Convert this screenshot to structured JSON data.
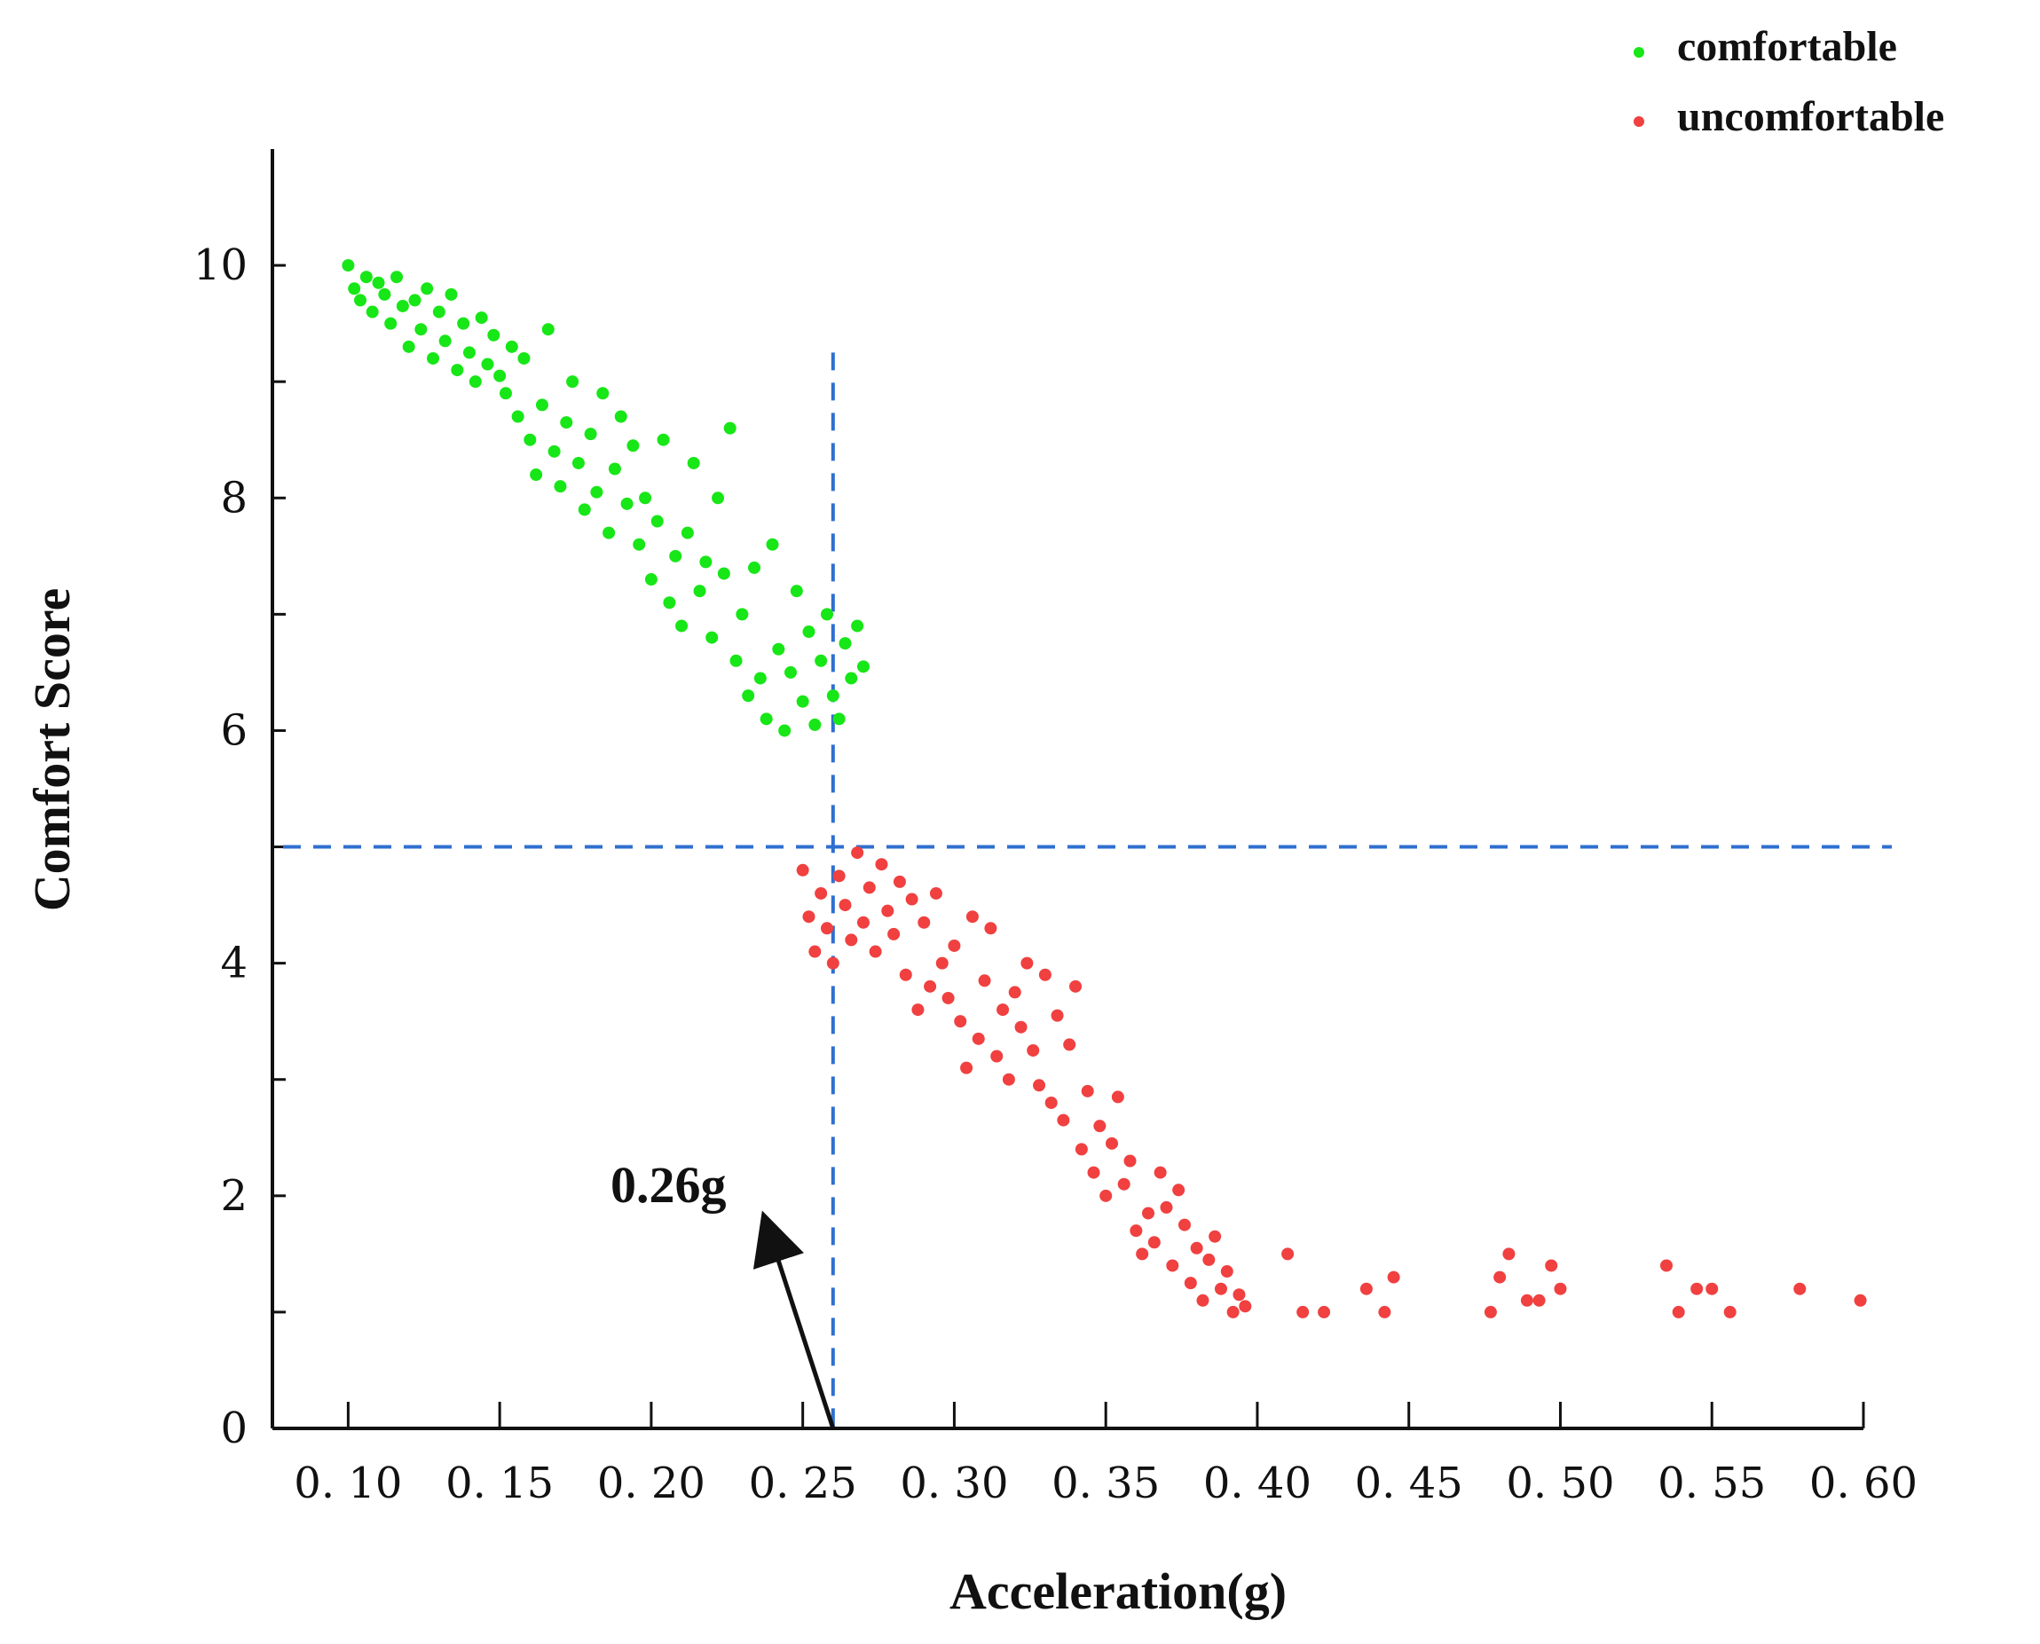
{
  "chart_data": {
    "type": "scatter",
    "title": "",
    "xlabel": "Acceleration(g)",
    "ylabel": "Comfort Score",
    "xlim": [
      0.075,
      0.6
    ],
    "ylim": [
      0,
      11
    ],
    "x_ticks": [
      {
        "value": 0.1,
        "label": "0. 10"
      },
      {
        "value": 0.15,
        "label": "0. 15"
      },
      {
        "value": 0.2,
        "label": "0. 20"
      },
      {
        "value": 0.25,
        "label": "0. 25"
      },
      {
        "value": 0.3,
        "label": "0. 30"
      },
      {
        "value": 0.35,
        "label": "0. 35"
      },
      {
        "value": 0.4,
        "label": "0. 40"
      },
      {
        "value": 0.45,
        "label": "0. 45"
      },
      {
        "value": 0.5,
        "label": "0. 50"
      },
      {
        "value": 0.55,
        "label": "0. 55"
      },
      {
        "value": 0.6,
        "label": "0. 60"
      }
    ],
    "y_ticks": [
      {
        "value": 0,
        "label": "0"
      },
      {
        "value": 2,
        "label": "2"
      },
      {
        "value": 4,
        "label": "4"
      },
      {
        "value": 6,
        "label": "6"
      },
      {
        "value": 8,
        "label": "8"
      },
      {
        "value": 10,
        "label": "10"
      }
    ],
    "reference_lines": [
      {
        "axis": "x",
        "value": 0.26,
        "color": "#2f6fd0"
      },
      {
        "axis": "y",
        "value": 5.0,
        "color": "#2f6fd0"
      }
    ],
    "annotation": {
      "text": "0.26g",
      "arrow_from": {
        "x": 0.26,
        "y": 0.0
      },
      "arrow_to": {
        "x": 0.2375,
        "y": 1.8
      }
    },
    "legend": {
      "position": "top-right",
      "items": [
        {
          "name": "comfortable",
          "color": "#17e617"
        },
        {
          "name": "uncomfortable",
          "color": "#f04040"
        }
      ]
    },
    "series": [
      {
        "name": "comfortable",
        "color": "#17e617",
        "points": [
          {
            "x": 0.1,
            "y": 10.0
          },
          {
            "x": 0.102,
            "y": 9.8
          },
          {
            "x": 0.104,
            "y": 9.7
          },
          {
            "x": 0.106,
            "y": 9.9
          },
          {
            "x": 0.108,
            "y": 9.6
          },
          {
            "x": 0.11,
            "y": 9.85
          },
          {
            "x": 0.112,
            "y": 9.75
          },
          {
            "x": 0.114,
            "y": 9.5
          },
          {
            "x": 0.116,
            "y": 9.9
          },
          {
            "x": 0.118,
            "y": 9.65
          },
          {
            "x": 0.12,
            "y": 9.3
          },
          {
            "x": 0.122,
            "y": 9.7
          },
          {
            "x": 0.124,
            "y": 9.45
          },
          {
            "x": 0.126,
            "y": 9.8
          },
          {
            "x": 0.128,
            "y": 9.2
          },
          {
            "x": 0.13,
            "y": 9.6
          },
          {
            "x": 0.132,
            "y": 9.35
          },
          {
            "x": 0.134,
            "y": 9.75
          },
          {
            "x": 0.136,
            "y": 9.1
          },
          {
            "x": 0.138,
            "y": 9.5
          },
          {
            "x": 0.14,
            "y": 9.25
          },
          {
            "x": 0.142,
            "y": 9.0
          },
          {
            "x": 0.144,
            "y": 9.55
          },
          {
            "x": 0.146,
            "y": 9.15
          },
          {
            "x": 0.148,
            "y": 9.4
          },
          {
            "x": 0.15,
            "y": 9.05
          },
          {
            "x": 0.152,
            "y": 8.9
          },
          {
            "x": 0.154,
            "y": 9.3
          },
          {
            "x": 0.156,
            "y": 8.7
          },
          {
            "x": 0.158,
            "y": 9.2
          },
          {
            "x": 0.16,
            "y": 8.5
          },
          {
            "x": 0.162,
            "y": 8.2
          },
          {
            "x": 0.164,
            "y": 8.8
          },
          {
            "x": 0.166,
            "y": 9.45
          },
          {
            "x": 0.168,
            "y": 8.4
          },
          {
            "x": 0.17,
            "y": 8.1
          },
          {
            "x": 0.172,
            "y": 8.65
          },
          {
            "x": 0.174,
            "y": 9.0
          },
          {
            "x": 0.176,
            "y": 8.3
          },
          {
            "x": 0.178,
            "y": 7.9
          },
          {
            "x": 0.18,
            "y": 8.55
          },
          {
            "x": 0.182,
            "y": 8.05
          },
          {
            "x": 0.184,
            "y": 8.9
          },
          {
            "x": 0.186,
            "y": 7.7
          },
          {
            "x": 0.188,
            "y": 8.25
          },
          {
            "x": 0.19,
            "y": 8.7
          },
          {
            "x": 0.192,
            "y": 7.95
          },
          {
            "x": 0.194,
            "y": 8.45
          },
          {
            "x": 0.196,
            "y": 7.6
          },
          {
            "x": 0.198,
            "y": 8.0
          },
          {
            "x": 0.2,
            "y": 7.3
          },
          {
            "x": 0.202,
            "y": 7.8
          },
          {
            "x": 0.204,
            "y": 8.5
          },
          {
            "x": 0.206,
            "y": 7.1
          },
          {
            "x": 0.208,
            "y": 7.5
          },
          {
            "x": 0.21,
            "y": 6.9
          },
          {
            "x": 0.212,
            "y": 7.7
          },
          {
            "x": 0.214,
            "y": 8.3
          },
          {
            "x": 0.216,
            "y": 7.2
          },
          {
            "x": 0.218,
            "y": 7.45
          },
          {
            "x": 0.22,
            "y": 6.8
          },
          {
            "x": 0.222,
            "y": 8.0
          },
          {
            "x": 0.224,
            "y": 7.35
          },
          {
            "x": 0.226,
            "y": 8.6
          },
          {
            "x": 0.228,
            "y": 6.6
          },
          {
            "x": 0.23,
            "y": 7.0
          },
          {
            "x": 0.232,
            "y": 6.3
          },
          {
            "x": 0.234,
            "y": 7.4
          },
          {
            "x": 0.236,
            "y": 6.45
          },
          {
            "x": 0.238,
            "y": 6.1
          },
          {
            "x": 0.24,
            "y": 7.6
          },
          {
            "x": 0.242,
            "y": 6.7
          },
          {
            "x": 0.244,
            "y": 6.0
          },
          {
            "x": 0.246,
            "y": 6.5
          },
          {
            "x": 0.248,
            "y": 7.2
          },
          {
            "x": 0.25,
            "y": 6.25
          },
          {
            "x": 0.252,
            "y": 6.85
          },
          {
            "x": 0.254,
            "y": 6.05
          },
          {
            "x": 0.256,
            "y": 6.6
          },
          {
            "x": 0.258,
            "y": 7.0
          },
          {
            "x": 0.26,
            "y": 6.3
          },
          {
            "x": 0.262,
            "y": 6.1
          },
          {
            "x": 0.264,
            "y": 6.75
          },
          {
            "x": 0.266,
            "y": 6.45
          },
          {
            "x": 0.268,
            "y": 6.9
          },
          {
            "x": 0.27,
            "y": 6.55
          }
        ]
      },
      {
        "name": "uncomfortable",
        "color": "#f04040",
        "points": [
          {
            "x": 0.25,
            "y": 4.8
          },
          {
            "x": 0.252,
            "y": 4.4
          },
          {
            "x": 0.254,
            "y": 4.1
          },
          {
            "x": 0.256,
            "y": 4.6
          },
          {
            "x": 0.258,
            "y": 4.3
          },
          {
            "x": 0.26,
            "y": 4.0
          },
          {
            "x": 0.262,
            "y": 4.75
          },
          {
            "x": 0.264,
            "y": 4.5
          },
          {
            "x": 0.266,
            "y": 4.2
          },
          {
            "x": 0.268,
            "y": 4.95
          },
          {
            "x": 0.27,
            "y": 4.35
          },
          {
            "x": 0.272,
            "y": 4.65
          },
          {
            "x": 0.274,
            "y": 4.1
          },
          {
            "x": 0.276,
            "y": 4.85
          },
          {
            "x": 0.278,
            "y": 4.45
          },
          {
            "x": 0.28,
            "y": 4.25
          },
          {
            "x": 0.282,
            "y": 4.7
          },
          {
            "x": 0.284,
            "y": 3.9
          },
          {
            "x": 0.286,
            "y": 4.55
          },
          {
            "x": 0.288,
            "y": 3.6
          },
          {
            "x": 0.29,
            "y": 4.35
          },
          {
            "x": 0.292,
            "y": 3.8
          },
          {
            "x": 0.294,
            "y": 4.6
          },
          {
            "x": 0.296,
            "y": 4.0
          },
          {
            "x": 0.298,
            "y": 3.7
          },
          {
            "x": 0.3,
            "y": 4.15
          },
          {
            "x": 0.302,
            "y": 3.5
          },
          {
            "x": 0.304,
            "y": 3.1
          },
          {
            "x": 0.306,
            "y": 4.4
          },
          {
            "x": 0.308,
            "y": 3.35
          },
          {
            "x": 0.31,
            "y": 3.85
          },
          {
            "x": 0.312,
            "y": 4.3
          },
          {
            "x": 0.314,
            "y": 3.2
          },
          {
            "x": 0.316,
            "y": 3.6
          },
          {
            "x": 0.318,
            "y": 3.0
          },
          {
            "x": 0.32,
            "y": 3.75
          },
          {
            "x": 0.322,
            "y": 3.45
          },
          {
            "x": 0.324,
            "y": 4.0
          },
          {
            "x": 0.326,
            "y": 3.25
          },
          {
            "x": 0.328,
            "y": 2.95
          },
          {
            "x": 0.33,
            "y": 3.9
          },
          {
            "x": 0.332,
            "y": 2.8
          },
          {
            "x": 0.334,
            "y": 3.55
          },
          {
            "x": 0.336,
            "y": 2.65
          },
          {
            "x": 0.338,
            "y": 3.3
          },
          {
            "x": 0.34,
            "y": 3.8
          },
          {
            "x": 0.342,
            "y": 2.4
          },
          {
            "x": 0.344,
            "y": 2.9
          },
          {
            "x": 0.346,
            "y": 2.2
          },
          {
            "x": 0.348,
            "y": 2.6
          },
          {
            "x": 0.35,
            "y": 2.0
          },
          {
            "x": 0.352,
            "y": 2.45
          },
          {
            "x": 0.354,
            "y": 2.85
          },
          {
            "x": 0.356,
            "y": 2.1
          },
          {
            "x": 0.358,
            "y": 2.3
          },
          {
            "x": 0.36,
            "y": 1.7
          },
          {
            "x": 0.362,
            "y": 1.5
          },
          {
            "x": 0.364,
            "y": 1.85
          },
          {
            "x": 0.366,
            "y": 1.6
          },
          {
            "x": 0.368,
            "y": 2.2
          },
          {
            "x": 0.37,
            "y": 1.9
          },
          {
            "x": 0.372,
            "y": 1.4
          },
          {
            "x": 0.374,
            "y": 2.05
          },
          {
            "x": 0.376,
            "y": 1.75
          },
          {
            "x": 0.378,
            "y": 1.25
          },
          {
            "x": 0.38,
            "y": 1.55
          },
          {
            "x": 0.382,
            "y": 1.1
          },
          {
            "x": 0.384,
            "y": 1.45
          },
          {
            "x": 0.386,
            "y": 1.65
          },
          {
            "x": 0.388,
            "y": 1.2
          },
          {
            "x": 0.39,
            "y": 1.35
          },
          {
            "x": 0.392,
            "y": 1.0
          },
          {
            "x": 0.394,
            "y": 1.15
          },
          {
            "x": 0.396,
            "y": 1.05
          },
          {
            "x": 0.41,
            "y": 1.5
          },
          {
            "x": 0.415,
            "y": 1.0
          },
          {
            "x": 0.422,
            "y": 1.0
          },
          {
            "x": 0.436,
            "y": 1.2
          },
          {
            "x": 0.442,
            "y": 1.0
          },
          {
            "x": 0.445,
            "y": 1.3
          },
          {
            "x": 0.477,
            "y": 1.0
          },
          {
            "x": 0.48,
            "y": 1.3
          },
          {
            "x": 0.483,
            "y": 1.5
          },
          {
            "x": 0.489,
            "y": 1.1
          },
          {
            "x": 0.493,
            "y": 1.1
          },
          {
            "x": 0.497,
            "y": 1.4
          },
          {
            "x": 0.5,
            "y": 1.2
          },
          {
            "x": 0.535,
            "y": 1.4
          },
          {
            "x": 0.539,
            "y": 1.0
          },
          {
            "x": 0.545,
            "y": 1.2
          },
          {
            "x": 0.55,
            "y": 1.2
          },
          {
            "x": 0.556,
            "y": 1.0
          },
          {
            "x": 0.579,
            "y": 1.2
          },
          {
            "x": 0.599,
            "y": 1.1
          }
        ]
      }
    ]
  }
}
